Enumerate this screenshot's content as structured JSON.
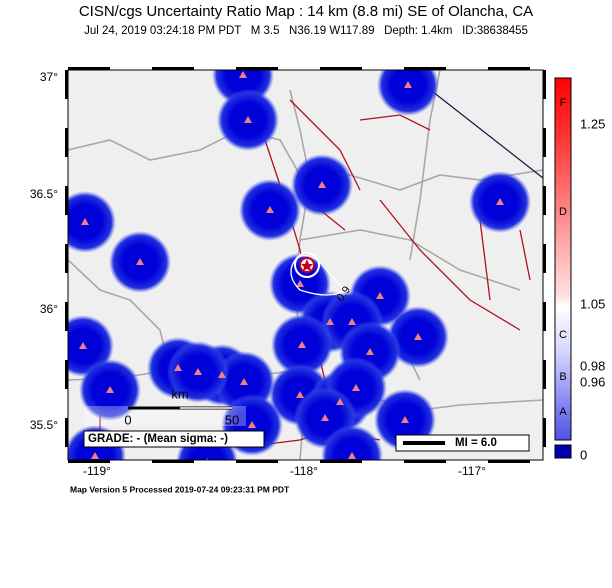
{
  "header": {
    "title": "CISN/cgs Uncertainty Ratio Map : 14 km (8.8 mi) SE of Olancha, CA",
    "subtitle": "Jul 24, 2019 03:24:18 PM PDT   M 3.5   N36.19 W117.89   Depth: 1.4km   ID:38638455"
  },
  "axes": {
    "lat_labels": [
      "37°",
      "36.5°",
      "36°",
      "35.5°"
    ],
    "lon_labels": [
      "-119°",
      "-118°",
      "-117°"
    ]
  },
  "colorbar": {
    "letters": [
      "F",
      "D",
      "C",
      "B",
      "A"
    ],
    "ticks": [
      "1.25",
      "1.05",
      "0.98",
      "0.96",
      "0"
    ]
  },
  "scale": {
    "unit": "km",
    "ticks": [
      "0",
      "50"
    ]
  },
  "grade": "GRADE: - (Mean sigma: -)",
  "legend": "MI = 6.0",
  "contour_label": "0.9",
  "footer": "Map Version 5 Processed 2019-07-24 09:23:31 PM PDT"
}
